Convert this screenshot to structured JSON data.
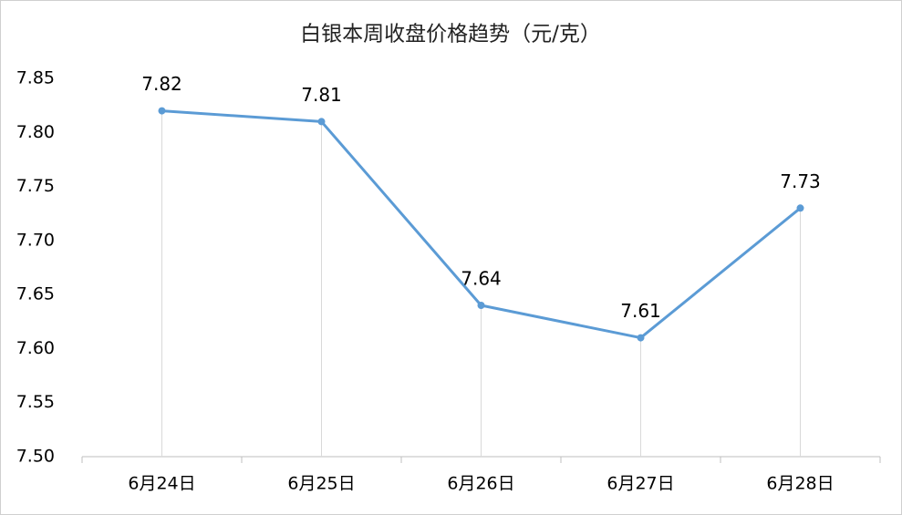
{
  "chart_data": {
    "type": "line",
    "title": "白银本周收盘价格趋势（元/克）",
    "categories": [
      "6月24日",
      "6月25日",
      "6月26日",
      "6月27日",
      "6月28日"
    ],
    "values": [
      7.82,
      7.81,
      7.64,
      7.61,
      7.73
    ],
    "color": "#5b9bd5",
    "ylim": [
      7.5,
      7.85
    ],
    "yticks": [
      {
        "value": 7.5,
        "label": "7.50"
      },
      7.55,
      {
        "value": 7.6,
        "label": "7.60"
      },
      7.65,
      {
        "value": 7.7,
        "label": "7.70"
      },
      7.75,
      {
        "value": 7.8,
        "label": "7.80"
      },
      7.85
    ],
    "drop_lines": true
  }
}
